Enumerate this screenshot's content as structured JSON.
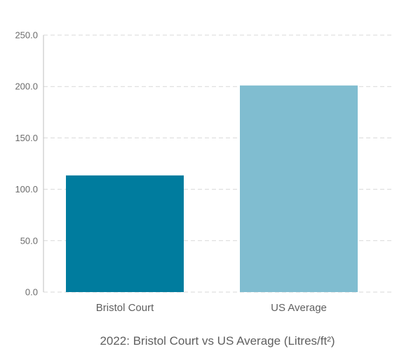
{
  "chart_data": {
    "type": "bar",
    "title": "2022: Bristol Court  vs US Average (Litres/ft²)",
    "categories": [
      "Bristol Court",
      "US Average"
    ],
    "values": [
      113.5,
      201.0
    ],
    "bar_colors": [
      "#007c9e",
      "#80bdd0"
    ],
    "ylim": [
      0,
      250
    ],
    "yticks": [
      0,
      50,
      100,
      150,
      200,
      250
    ],
    "ytick_labels": [
      "0.0",
      "50.0",
      "100.0",
      "150.0",
      "200.0",
      "250.0"
    ],
    "grid": true,
    "legend": "none"
  }
}
